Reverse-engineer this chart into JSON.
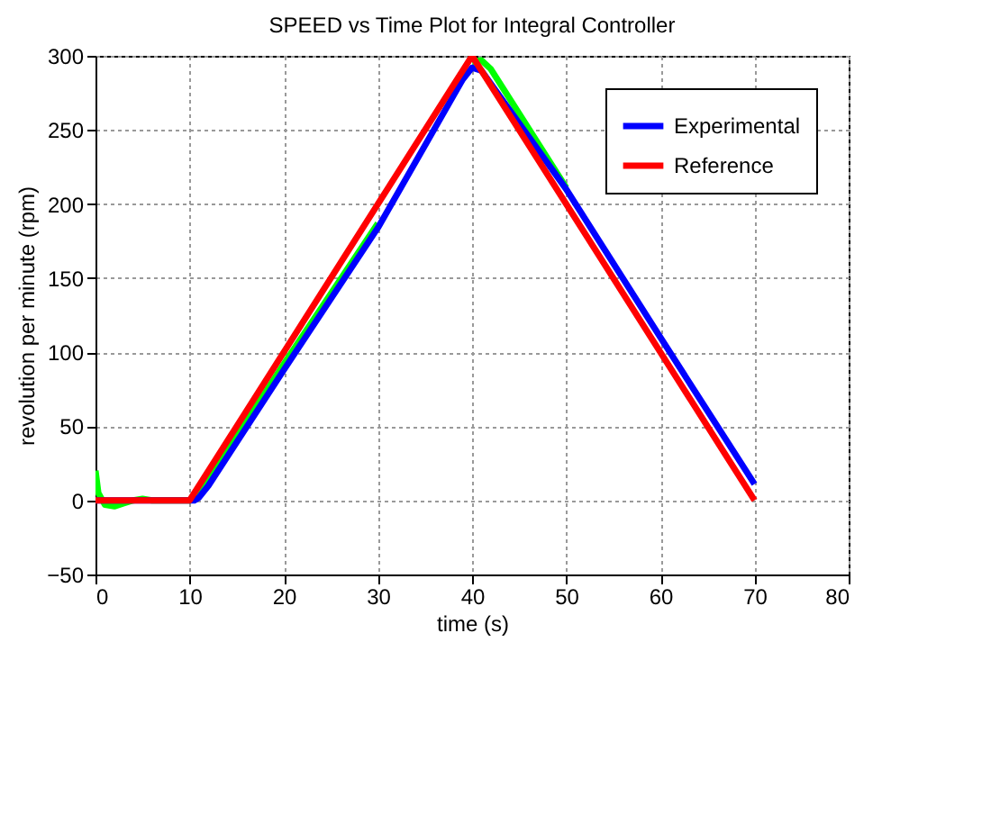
{
  "chart_data": {
    "type": "line",
    "title": "SPEED vs Time Plot for Integral Controller",
    "xlabel": "time (s)",
    "ylabel": "revolution per minute (rpm)",
    "xlim": [
      0,
      80
    ],
    "ylim": [
      -50,
      300
    ],
    "xticks": [
      0,
      10,
      20,
      30,
      40,
      50,
      60,
      70,
      80
    ],
    "yticks": [
      -50,
      0,
      50,
      100,
      150,
      200,
      250,
      300
    ],
    "grid": true,
    "legend": "top right",
    "line_style": "solid",
    "marker": "none",
    "series": [
      {
        "color": "#00ff00",
        "x": [
          0,
          0.3,
          1,
          2,
          3,
          4,
          5,
          6,
          10,
          11,
          20,
          30,
          39,
          40,
          41,
          42,
          50
        ],
        "values": [
          20,
          5,
          -3,
          -4,
          -2,
          0,
          1,
          0,
          0,
          4,
          92,
          187,
          null,
          296,
          297,
          291,
          211
        ]
      },
      {
        "name": "Experimental",
        "color": "#0000ff",
        "x": [
          0,
          10,
          10.5,
          11,
          12,
          20,
          30,
          39,
          40,
          41,
          50,
          60,
          70
        ],
        "values": [
          0,
          0,
          0,
          2,
          10,
          88,
          184,
          284,
          292,
          290,
          210,
          110,
          11
        ]
      },
      {
        "name": "Reference",
        "color": "#ff0000",
        "x": [
          0,
          10,
          40,
          70
        ],
        "values": [
          0,
          0,
          300,
          0
        ]
      }
    ]
  }
}
